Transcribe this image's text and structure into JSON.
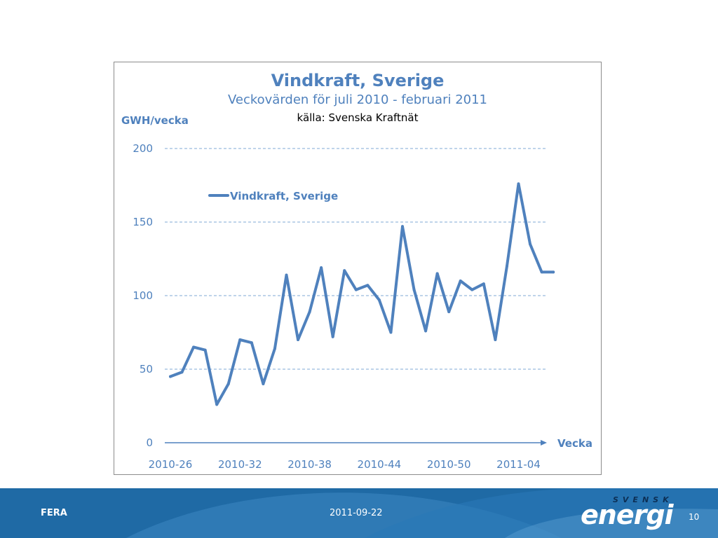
{
  "chart_data": {
    "type": "line",
    "title": "Vindkraft, Sverige",
    "subtitle": "Veckovärden för juli 2010 - februari 2011",
    "source": "källa: Svenska Kraftnät",
    "ylabel": "GWH/vecka",
    "xlabel": "Vecka",
    "ylim": [
      0,
      200
    ],
    "yticks": [
      0,
      50,
      100,
      150,
      200
    ],
    "xtick_labels": [
      "2010-26",
      "2010-32",
      "2010-38",
      "2010-44",
      "2010-50",
      "2011-04"
    ],
    "grid": "horizontal dashed",
    "legend": "top-left inside plot",
    "categories": [
      "2010-26",
      "2010-27",
      "2010-28",
      "2010-29",
      "2010-30",
      "2010-31",
      "2010-32",
      "2010-33",
      "2010-34",
      "2010-35",
      "2010-36",
      "2010-37",
      "2010-38",
      "2010-39",
      "2010-40",
      "2010-41",
      "2010-42",
      "2010-43",
      "2010-44",
      "2010-45",
      "2010-46",
      "2010-47",
      "2010-48",
      "2010-49",
      "2010-50",
      "2010-51",
      "2010-52",
      "2011-01",
      "2011-02",
      "2011-03",
      "2011-04",
      "2011-05",
      "2011-06",
      "2011-07"
    ],
    "series": [
      {
        "name": "Vindkraft, Sverige",
        "color": "#4f81bd",
        "values": [
          45,
          48,
          65,
          63,
          26,
          40,
          70,
          68,
          40,
          64,
          114,
          70,
          89,
          119,
          72,
          117,
          104,
          107,
          97,
          75,
          147,
          104,
          76,
          115,
          89,
          110,
          104,
          108,
          70,
          120,
          176,
          135,
          116,
          116
        ]
      }
    ]
  },
  "footer": {
    "left": "FERA",
    "date": "2011-09-22",
    "page": "10",
    "logo_small": "SVENSK",
    "logo_big": "energi"
  },
  "colors": {
    "accent": "#4f81bd",
    "footer_bg": "#1f6aa5"
  }
}
